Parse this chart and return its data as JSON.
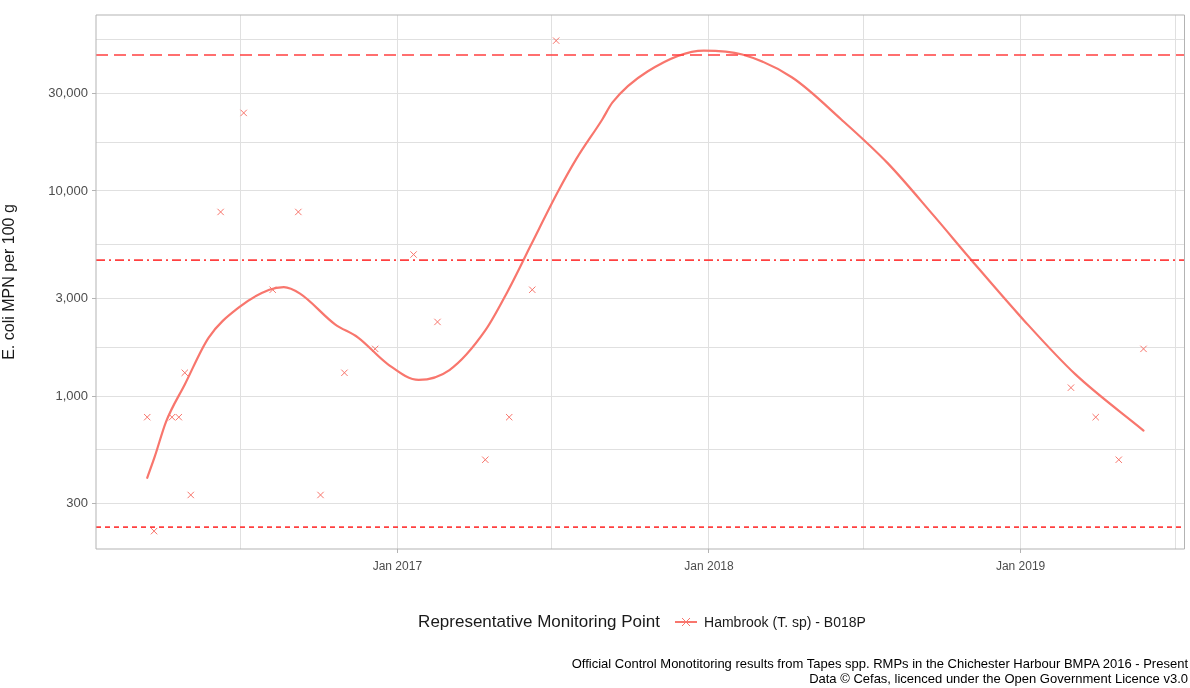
{
  "chart_data": {
    "type": "scatter",
    "ylabel": "E. coli MPN per 100 g",
    "legend_title": "Representative Monitoring Point",
    "legend": "bottom",
    "grid": true,
    "log": "y",
    "xlim": [
      "2016-01-14",
      "2019-07-12"
    ],
    "xticks": [
      {
        "value": "2016-07-01",
        "label": null
      },
      {
        "value": "2017-01-01",
        "label": "Jan 2017"
      },
      {
        "value": "2017-07-01",
        "label": null
      },
      {
        "value": "2018-01-01",
        "label": "Jan 2018"
      },
      {
        "value": "2018-07-01",
        "label": null
      },
      {
        "value": "2019-01-01",
        "label": "Jan 2019"
      },
      {
        "value": "2019-07-01",
        "label": null
      }
    ],
    "ylim": [
      180,
      72000
    ],
    "yticks": [
      {
        "value": 300,
        "label": "300"
      },
      {
        "value": 550,
        "label": null
      },
      {
        "value": 1000,
        "label": "1,000"
      },
      {
        "value": 1730,
        "label": null
      },
      {
        "value": 3000,
        "label": "3,000"
      },
      {
        "value": 5480,
        "label": null
      },
      {
        "value": 10000,
        "label": "10,000"
      },
      {
        "value": 17300,
        "label": null
      },
      {
        "value": 30000,
        "label": "30,000"
      },
      {
        "value": 54800,
        "label": null
      }
    ],
    "series": [
      {
        "name": "Hambrook (T. sp) - B018P",
        "type": "line",
        "color": "#f8766d",
        "marker": "none",
        "line_style": "solid",
        "x": [
          "2016-03-14",
          "2016-03-23",
          "2016-04-05",
          "2016-04-27",
          "2016-05-25",
          "2016-06-29",
          "2016-08-04",
          "2016-08-21",
          "2016-09-09",
          "2016-10-20",
          "2016-11-16",
          "2016-12-21",
          "2017-01-26",
          "2017-03-03",
          "2017-04-14",
          "2017-05-10",
          "2017-06-06",
          "2017-07-08",
          "2017-07-30",
          "2017-08-29",
          "2017-09-10",
          "2017-10-21",
          "2017-12-26",
          "2018-02-09",
          "2018-04-08",
          "2018-06-05",
          "2018-07-29",
          "2018-09-21",
          "2018-11-05",
          "2019-01-05",
          "2019-03-06",
          "2019-05-25"
        ],
        "values": [
          400,
          510,
          750,
          1140,
          1930,
          2700,
          3300,
          3400,
          3160,
          2240,
          1930,
          1430,
          1200,
          1340,
          2090,
          3230,
          5400,
          9900,
          14400,
          22300,
          27000,
          38200,
          48300,
          46200,
          35800,
          22300,
          13700,
          7600,
          4570,
          2340,
          1280,
          680
        ]
      },
      {
        "color": "#f8766d",
        "marker": "cross",
        "x": [
          "2016-03-14",
          "2016-03-22",
          "2016-04-12",
          "2016-04-20",
          "2016-04-27",
          "2016-05-04",
          "2016-06-08",
          "2016-07-05",
          "2016-08-08",
          "2016-09-07",
          "2016-10-03",
          "2016-10-31",
          "2016-12-06",
          "2017-01-20",
          "2017-02-17",
          "2017-04-14",
          "2017-05-12",
          "2017-06-08",
          "2017-07-06",
          "2019-03-01",
          "2019-03-30",
          "2019-04-26",
          "2019-05-25"
        ],
        "values": [
          790,
          220,
          790,
          790,
          1300,
          330,
          7900,
          24000,
          3300,
          7900,
          330,
          1300,
          1700,
          4900,
          2300,
          490,
          790,
          3300,
          54000,
          1100,
          790,
          490,
          1700
        ]
      }
    ],
    "ref_lines": [
      {
        "axis": "y",
        "value": 46000,
        "color": "#ff4040",
        "line_style": "dashed"
      },
      {
        "axis": "y",
        "value": 4600,
        "color": "#ff4040",
        "line_style": "dashdot"
      },
      {
        "axis": "y",
        "value": 230,
        "color": "#ff4040",
        "line_style": "dotted"
      }
    ],
    "annotations": [
      "Official Control Monotitoring results from Tapes spp. RMPs in the Chichester Harbour BMPA 2016 - Present",
      "Data © Cefas, licenced under the Open Government Licence v3.0"
    ]
  }
}
